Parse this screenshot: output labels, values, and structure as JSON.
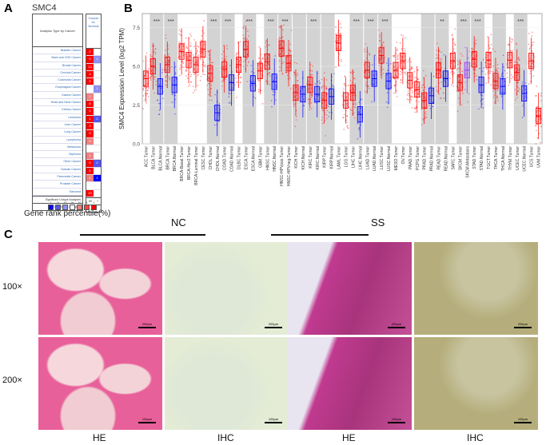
{
  "panel_labels": {
    "a": "A",
    "b": "B",
    "c": "C"
  },
  "panel_a": {
    "title": "SMC4",
    "header_left": "Analysis Type by Cancer",
    "header_right": "Cancer vs. Normal",
    "rows": [
      {
        "name": "Bladder Cancer",
        "up": "2",
        "up_level": 3,
        "down": "",
        "down_level": 0
      },
      {
        "name": "Brain and CNS Cancer",
        "up": "9",
        "up_level": 3,
        "down": "1",
        "down_level": 1
      },
      {
        "name": "Breast Cancer",
        "up": "13",
        "up_level": 3,
        "down": "",
        "down_level": 0
      },
      {
        "name": "Cervical Cancer",
        "up": "4",
        "up_level": 3,
        "down": "",
        "down_level": 0
      },
      {
        "name": "Colorectal Cancer",
        "up": "9",
        "up_level": 3,
        "down": "",
        "down_level": 0
      },
      {
        "name": "Esophageal Cancer",
        "up": "",
        "up_level": 0,
        "down": "1",
        "down_level": 1
      },
      {
        "name": "Gastric Cancer",
        "up": "2",
        "up_level": 1,
        "down": "",
        "down_level": 0
      },
      {
        "name": "Head and Neck Cancer",
        "up": "8",
        "up_level": 3,
        "down": "",
        "down_level": 0
      },
      {
        "name": "Kidney Cancer",
        "up": "4",
        "up_level": 3,
        "down": "",
        "down_level": 0
      },
      {
        "name": "Leukemia",
        "up": "1",
        "up_level": 3,
        "down": "2",
        "down_level": 2
      },
      {
        "name": "Liver Cancer",
        "up": "3",
        "up_level": 3,
        "down": "",
        "down_level": 0
      },
      {
        "name": "Lung Cancer",
        "up": "9",
        "up_level": 3,
        "down": "",
        "down_level": 0
      },
      {
        "name": "Lymphoma",
        "up": "2",
        "up_level": 1,
        "down": "",
        "down_level": 0
      },
      {
        "name": "Melanoma",
        "up": "",
        "up_level": 0,
        "down": "",
        "down_level": 0
      },
      {
        "name": "Myeloma",
        "up": "1",
        "up_level": 1,
        "down": "",
        "down_level": 0
      },
      {
        "name": "Other Cancer",
        "up": "5",
        "up_level": 3,
        "down": "2",
        "down_level": 2
      },
      {
        "name": "Ovarian Cancer",
        "up": "4",
        "up_level": 3,
        "down": "",
        "down_level": 0
      },
      {
        "name": "Pancreatic Cancer",
        "up": "1",
        "up_level": 1,
        "down": "1",
        "down_level": 3
      },
      {
        "name": "Prostate Cancer",
        "up": "",
        "up_level": 0,
        "down": "",
        "down_level": 0
      },
      {
        "name": "Sarcoma",
        "up": "13",
        "up_level": 3,
        "down": "",
        "down_level": 0
      }
    ],
    "significant_label": "Significant Unique Analyses",
    "significant_up": "89",
    "significant_down": "7",
    "total_label": "Total Unique Analyses",
    "total": "425",
    "legend": {
      "blue_ticks": [
        "1",
        "5",
        "10"
      ],
      "red_ticks": [
        "10",
        "5",
        "1"
      ],
      "mid": "%",
      "label": "Gene rank percentile(%)"
    },
    "colors": {
      "up": [
        "#ffffff",
        "#f08080",
        "#f44",
        "#ff0000"
      ],
      "down": [
        "#ffffff",
        "#8f8ff0",
        "#5555ee",
        "#0000ff"
      ]
    }
  },
  "chart_data": {
    "type": "box",
    "ylabel": "SMC4 Expression Level (log2 TPM)",
    "ylim": [
      0,
      8.4
    ],
    "yticks": [
      "0.0",
      "2.5",
      "5.0",
      "7.5"
    ],
    "colors": {
      "tumor": "#ff0000",
      "normal": "#0000ff",
      "metastasis": "#9933ff"
    },
    "groups": [
      {
        "label": "ACC.Tumor",
        "median": 4.2,
        "type": "tumor"
      },
      {
        "label": "BLCA.Tumor",
        "median": 5.0,
        "type": "tumor"
      },
      {
        "label": "BLCA.Normal",
        "median": 3.7,
        "type": "normal"
      },
      {
        "label": "BRCA.Tumor",
        "median": 5.1,
        "type": "tumor"
      },
      {
        "label": "BRCA.Normal",
        "median": 3.8,
        "type": "normal"
      },
      {
        "label": "BRCA-Basal.Tumor",
        "median": 5.95,
        "type": "tumor"
      },
      {
        "label": "BRCA-Her2.Tumor",
        "median": 5.4,
        "type": "tumor"
      },
      {
        "label": "BRCA-Luminal.Tumor",
        "median": 5.1,
        "type": "tumor"
      },
      {
        "label": "CESC.Tumor",
        "median": 6.1,
        "type": "tumor"
      },
      {
        "label": "CHOL.Tumor",
        "median": 4.55,
        "type": "tumor"
      },
      {
        "label": "CHOL.Normal",
        "median": 2.0,
        "type": "normal"
      },
      {
        "label": "COAD.Tumor",
        "median": 4.8,
        "type": "tumor"
      },
      {
        "label": "COAD.Normal",
        "median": 3.95,
        "type": "normal"
      },
      {
        "label": "DLBC.Tumor",
        "median": 5.1,
        "type": "tumor"
      },
      {
        "label": "ESCA.Tumor",
        "median": 6.1,
        "type": "tumor"
      },
      {
        "label": "ESCA.Normal",
        "median": 3.9,
        "type": "normal"
      },
      {
        "label": "GBM.Tumor",
        "median": 4.7,
        "type": "tumor"
      },
      {
        "label": "HNSC.Tumor",
        "median": 5.3,
        "type": "tumor"
      },
      {
        "label": "HNSC.Normal",
        "median": 4.0,
        "type": "normal"
      },
      {
        "label": "HNSC-HPVpos.Tumor",
        "median": 6.15,
        "type": "tumor"
      },
      {
        "label": "HNSC-HPVneg.Tumor",
        "median": 5.2,
        "type": "tumor"
      },
      {
        "label": "KICH.Tumor",
        "median": 3.3,
        "type": "tumor"
      },
      {
        "label": "KICH.Normal",
        "median": 3.2,
        "type": "normal"
      },
      {
        "label": "KIRC.Tumor",
        "median": 3.8,
        "type": "tumor"
      },
      {
        "label": "KIRC.Normal",
        "median": 3.2,
        "type": "normal"
      },
      {
        "label": "KIRP.Tumor",
        "median": 2.8,
        "type": "tumor"
      },
      {
        "label": "KIRP.Normal",
        "median": 3.05,
        "type": "normal"
      },
      {
        "label": "LAML.Tumor",
        "median": 6.5,
        "type": "tumor"
      },
      {
        "label": "LGG.Tumor",
        "median": 2.8,
        "type": "tumor"
      },
      {
        "label": "LIHC.Tumor",
        "median": 3.3,
        "type": "tumor"
      },
      {
        "label": "LIHC.Normal",
        "median": 1.9,
        "type": "normal"
      },
      {
        "label": "LUAD.Tumor",
        "median": 4.75,
        "type": "tumor"
      },
      {
        "label": "LUAD.Normal",
        "median": 4.2,
        "type": "normal"
      },
      {
        "label": "LUSC.Tumor",
        "median": 5.7,
        "type": "tumor"
      },
      {
        "label": "LUSC.Normal",
        "median": 4.05,
        "type": "normal"
      },
      {
        "label": "MESO.Tumor",
        "median": 4.75,
        "type": "tumor"
      },
      {
        "label": "OV.Tumor",
        "median": 5.35,
        "type": "tumor"
      },
      {
        "label": "PAAD.Tumor",
        "median": 4.1,
        "type": "tumor"
      },
      {
        "label": "PCPG.Tumor",
        "median": 3.5,
        "type": "tumor"
      },
      {
        "label": "PRAD.Tumor",
        "median": 2.8,
        "type": "tumor"
      },
      {
        "label": "PRAD.Normal",
        "median": 3.1,
        "type": "normal"
      },
      {
        "label": "READ.Tumor",
        "median": 4.75,
        "type": "tumor"
      },
      {
        "label": "READ.Normal",
        "median": 4.2,
        "type": "normal"
      },
      {
        "label": "SARC.Tumor",
        "median": 5.35,
        "type": "tumor"
      },
      {
        "label": "SKCM.Tumor",
        "median": 3.95,
        "type": "tumor"
      },
      {
        "label": "SKCM.Metastasis",
        "median": 4.75,
        "type": "metastasis"
      },
      {
        "label": "STAD.Tumor",
        "median": 5.45,
        "type": "tumor"
      },
      {
        "label": "STAD.Normal",
        "median": 3.8,
        "type": "normal"
      },
      {
        "label": "TGCT.Tumor",
        "median": 5.4,
        "type": "tumor"
      },
      {
        "label": "THCA.Tumor",
        "median": 4.05,
        "type": "tumor"
      },
      {
        "label": "THCA.Normal",
        "median": 3.7,
        "type": "normal"
      },
      {
        "label": "THYM.Tumor",
        "median": 5.4,
        "type": "tumor"
      },
      {
        "label": "UCEC.Tumor",
        "median": 4.6,
        "type": "tumor"
      },
      {
        "label": "UCEC.Normal",
        "median": 3.25,
        "type": "normal"
      },
      {
        "label": "UCS.Tumor",
        "median": 5.35,
        "type": "tumor"
      },
      {
        "label": "UVM.Tumor",
        "median": 1.8,
        "type": "tumor"
      }
    ],
    "comparisons": [
      {
        "first": "BLCA.Tumor",
        "sig": "***"
      },
      {
        "first": "BRCA.Tumor",
        "sig": "***"
      },
      {
        "first": "CHOL.Tumor",
        "sig": "***"
      },
      {
        "first": "COAD.Tumor",
        "sig": "***"
      },
      {
        "first": "ESCA.Tumor",
        "sig": "***"
      },
      {
        "first": "HNSC.Tumor",
        "sig": "***"
      },
      {
        "first": "HNSC-HPVpos.Tumor",
        "sig": "***"
      },
      {
        "first": "KICH.Tumor",
        "sig": ""
      },
      {
        "first": "KIRC.Tumor",
        "sig": "***"
      },
      {
        "first": "KIRP.Tumor",
        "sig": ""
      },
      {
        "first": "LIHC.Tumor",
        "sig": "***"
      },
      {
        "first": "LUAD.Tumor",
        "sig": "***"
      },
      {
        "first": "LUSC.Tumor",
        "sig": "***"
      },
      {
        "first": "PRAD.Tumor",
        "sig": ""
      },
      {
        "first": "READ.Tumor",
        "sig": "**"
      },
      {
        "first": "SKCM.Tumor",
        "sig": "***"
      },
      {
        "first": "STAD.Tumor",
        "sig": "***"
      },
      {
        "first": "THCA.Tumor",
        "sig": ""
      },
      {
        "first": "UCEC.Tumor",
        "sig": "***"
      }
    ]
  },
  "panel_c": {
    "groups": [
      "NC",
      "SS"
    ],
    "magnifications": [
      "100×",
      "200×"
    ],
    "stains": [
      "HE",
      "IHC",
      "HE",
      "IHC"
    ],
    "scale_bars": [
      "200μm",
      "100μm"
    ]
  }
}
